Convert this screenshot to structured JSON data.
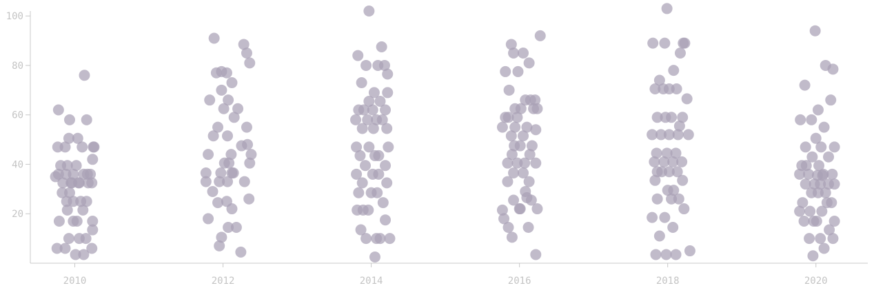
{
  "chart_data": {
    "type": "scatter",
    "title": "",
    "xlabel": "",
    "ylabel": "",
    "x_ticks": [
      "2010",
      "2012",
      "2014",
      "2016",
      "2018",
      "2020"
    ],
    "xlim": [
      2009.4,
      2020.7
    ],
    "y_ticks": [
      20,
      40,
      60,
      80,
      100
    ],
    "ylim": [
      0,
      102
    ],
    "grid": false,
    "point_color": "#a9a1b6",
    "series": [
      {
        "x": [
          2010.13,
          2009.78,
          2010.16,
          2009.93,
          2010.25,
          2010.1,
          2009.87,
          2010.26,
          2010.04,
          2009.92,
          2009.77,
          2010.24,
          2009.81,
          2010.02,
          2009.9,
          2009.78,
          2010.21,
          2010.12,
          2009.88,
          2009.98,
          2010.17,
          2009.74,
          2010.06,
          2009.95,
          2010.18,
          2009.84,
          2009.96,
          2010.05,
          2009.93,
          2010.23,
          2009.83,
          2009.89,
          2010.08,
          2010.16,
          2009.98,
          2009.9,
          2010.11,
          2009.79,
          2010.03,
          2010.24,
          2009.98,
          2009.92,
          2010.06,
          2010.15,
          2009.87,
          2010.23,
          2009.76,
          2010.12,
          2010.01,
          2010.24
        ],
        "y": [
          76,
          62,
          58,
          58,
          47,
          47,
          47,
          47,
          50.5,
          50.5,
          47,
          42,
          39.5,
          39.5,
          39.5,
          36,
          36,
          36,
          36,
          36,
          36,
          35,
          32.5,
          32.5,
          32.5,
          32.5,
          32.5,
          32.5,
          28.5,
          32.5,
          28.5,
          25,
          25,
          25,
          25,
          21.5,
          21.5,
          17,
          17,
          17,
          17,
          10,
          10,
          10,
          6,
          6,
          6,
          3.5,
          3.5,
          13.5
        ]
      },
      {
        "x": [
          2011.88,
          2012.32,
          2012.05,
          2011.91,
          2012.36,
          2011.98,
          2012.12,
          2012.28,
          2011.98,
          2012.07,
          2012.2,
          2011.82,
          2012.01,
          2012.32,
          2011.93,
          2012.15,
          2012.06,
          2011.87,
          2012.33,
          2012.11,
          2012.02,
          2012.25,
          2012.08,
          2011.8,
          2011.97,
          2012.36,
          2012.14,
          2012.29,
          2011.95,
          2012.06,
          2011.77,
          2011.86,
          2012.12,
          2011.93,
          2012.35,
          2011.8,
          2012.12,
          2011.98,
          2012.18,
          2012.07,
          2012.24,
          2011.95,
          2012.05,
          2011.77,
          2012.38
        ],
        "y": [
          91,
          85,
          77,
          77,
          81,
          77.5,
          73,
          88.5,
          70,
          66,
          62.5,
          66,
          62.5,
          55,
          55,
          59,
          51.5,
          51.5,
          48,
          44,
          40.5,
          47.5,
          40.5,
          44,
          36.5,
          40.5,
          36.5,
          33,
          33,
          33,
          33,
          29,
          36.5,
          24.5,
          26,
          18,
          22,
          10.5,
          14.5,
          14.5,
          4.5,
          7,
          25,
          36.5,
          44
        ]
      },
      {
        "x": [
          2013.97,
          2014.14,
          2013.82,
          2014.09,
          2013.93,
          2014.18,
          2013.87,
          2014.04,
          2014.22,
          2013.97,
          2014.12,
          2013.83,
          2014.02,
          2014.19,
          2013.9,
          2014.07,
          2013.79,
          2013.95,
          2014.15,
          2014.21,
          2013.88,
          2014.03,
          2013.8,
          2013.97,
          2014.23,
          2014.1,
          2013.85,
          2014.05,
          2014.19,
          2013.92,
          2013.8,
          2014.02,
          2014.1,
          2013.88,
          2014.21,
          2013.83,
          2014.0,
          2014.16,
          2014.08,
          2013.96,
          2013.89,
          2013.81,
          2014.19,
          2014.12,
          2014.07,
          2014.25,
          2013.93,
          2014.05,
          2013.86,
          2014.22
        ],
        "y": [
          102,
          87.5,
          84,
          80,
          80,
          80,
          73,
          69,
          76.5,
          65.5,
          65.5,
          62,
          62,
          62,
          62,
          58,
          58,
          58,
          58,
          54.5,
          54.5,
          54.5,
          47,
          47,
          47,
          43.5,
          43.5,
          43.5,
          39.5,
          39.5,
          36,
          36,
          36,
          32.5,
          32.5,
          28.5,
          28.5,
          24.5,
          28.5,
          21.5,
          21.5,
          21.5,
          17.5,
          10,
          10,
          10,
          10,
          2.5,
          13.5,
          69
        ]
      },
      {
        "x": [
          2016.28,
          2015.89,
          2016.05,
          2015.92,
          2016.13,
          2015.81,
          2015.98,
          2016.21,
          2015.86,
          2016.08,
          2015.94,
          2016.15,
          2016.02,
          2015.85,
          2016.24,
          2015.97,
          2016.1,
          2015.81,
          2016.22,
          2015.94,
          2016.05,
          2015.89,
          2016.17,
          2016.01,
          2015.77,
          2015.9,
          2016.14,
          2016.07,
          2015.84,
          2016.22,
          2015.97,
          2016.05,
          2015.92,
          2016.13,
          2015.84,
          2016.08,
          2016.16,
          2015.92,
          2015.79,
          2016.01,
          2016.24,
          2016.0,
          2015.77,
          2016.22,
          2015.9,
          2016.12,
          2015.85,
          2016.1,
          2016.19,
          2015.93
        ],
        "y": [
          92,
          88.5,
          85,
          85,
          81,
          77.5,
          77.5,
          66,
          70,
          66,
          62.5,
          66,
          62.5,
          59,
          62.5,
          59,
          55,
          59,
          54,
          55,
          51.5,
          51.5,
          47.5,
          47.5,
          55,
          44,
          44,
          40.5,
          40.5,
          40.5,
          40.5,
          36.5,
          36.5,
          33,
          33,
          29,
          25.5,
          25.5,
          18,
          22,
          22,
          22,
          21.5,
          3.5,
          10.5,
          14.5,
          14.5,
          26.5,
          62.5,
          47.5
        ]
      },
      {
        "x": [
          2017.99,
          2018.23,
          2017.8,
          2017.96,
          2018.17,
          2018.08,
          2017.89,
          2018.21,
          2018.02,
          2017.83,
          2017.94,
          2018.12,
          2018.26,
          2017.86,
          2018.05,
          2017.97,
          2018.2,
          2017.79,
          2018.14,
          2017.91,
          2018.02,
          2018.28,
          2017.85,
          2017.99,
          2018.11,
          2017.82,
          2018.19,
          2017.95,
          2018.07,
          2017.86,
          2018.13,
          2018.02,
          2017.92,
          2017.83,
          2018.2,
          2018.08,
          2018.0,
          2017.86,
          2018.15,
          2017.96,
          2017.79,
          2018.22,
          2018.07,
          2017.89,
          2018.3,
          2018.11,
          2017.98,
          2017.84,
          2018.05,
          2018.16
        ],
        "y": [
          103,
          89,
          89,
          89,
          85,
          78,
          74,
          89,
          70.5,
          70.5,
          70.5,
          70.5,
          66.5,
          59,
          59,
          59,
          59,
          52,
          52,
          52,
          52,
          52,
          44.5,
          44.5,
          44.5,
          41,
          41,
          41,
          41,
          37,
          37,
          37,
          37,
          33.5,
          33.5,
          29.5,
          29.5,
          26,
          26,
          18.5,
          18.5,
          22,
          14.5,
          11,
          5,
          3.5,
          3.5,
          3.5,
          26,
          55.5
        ]
      },
      {
        "x": [
          2019.99,
          2020.13,
          2020.23,
          2019.85,
          2020.03,
          2020.2,
          2019.94,
          2020.11,
          2019.79,
          2020.0,
          2020.25,
          2019.86,
          2020.07,
          2019.95,
          2020.17,
          2019.81,
          2020.04,
          2020.22,
          2019.9,
          2020.1,
          2019.78,
          2019.98,
          2020.17,
          2020.06,
          2019.86,
          2020.25,
          2019.94,
          2020.13,
          2020.03,
          2019.82,
          2020.21,
          2019.92,
          2020.08,
          2019.84,
          2020.01,
          2019.97,
          2020.18,
          2020.25,
          2019.91,
          2020.06,
          2020.11,
          2019.78,
          2019.96,
          2020.23,
          2020.02,
          2019.87,
          2020.15,
          2020.09
        ],
        "y": [
          94,
          80,
          78.5,
          72,
          62,
          66,
          58,
          55,
          58,
          50.5,
          47,
          47,
          47,
          43,
          43,
          39.5,
          39.5,
          36,
          36,
          36,
          36,
          32,
          32,
          32,
          32,
          32,
          28.5,
          28.5,
          28.5,
          24.5,
          24.5,
          21,
          21,
          17,
          17,
          17,
          13.5,
          17,
          10,
          10,
          6,
          21,
          3,
          10,
          35.5,
          39.5,
          24.5,
          35.5
        ]
      }
    ]
  }
}
